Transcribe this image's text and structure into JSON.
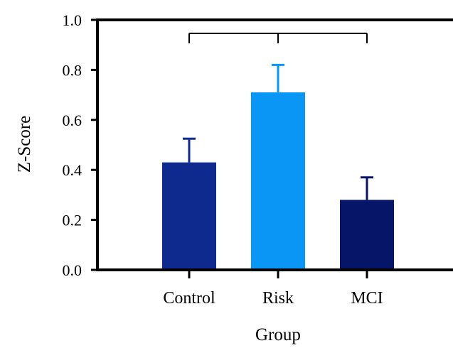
{
  "chart_data": {
    "type": "bar",
    "title": "",
    "xlabel": "Group",
    "ylabel": "Z-Score",
    "categories": [
      "Control",
      "Risk",
      "MCI"
    ],
    "values": [
      0.43,
      0.71,
      0.28
    ],
    "errors": [
      0.095,
      0.11,
      0.09
    ],
    "colors": [
      "#0e2a8e",
      "#0a96f5",
      "#061568"
    ],
    "ylim": [
      0.0,
      1.0
    ],
    "yticks": [
      "0.0",
      "0.2",
      "0.4",
      "0.6",
      "0.8",
      "1.0"
    ],
    "grid": false,
    "legend": "none",
    "comparison_bracket": {
      "from": "Control",
      "to": "MCI",
      "center": "Risk",
      "label": ""
    }
  }
}
